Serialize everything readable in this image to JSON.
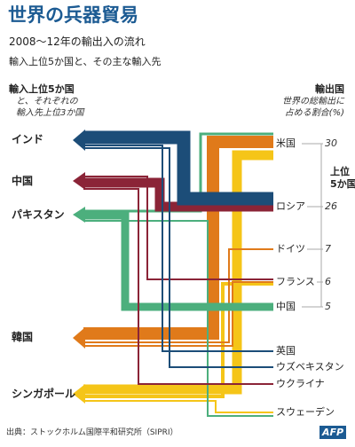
{
  "header": {
    "title": "世界の兵器貿易",
    "subtitle": "2008～12年の輸出入の流れ",
    "description": "輸入上位5か国と、その主な輸入先"
  },
  "importers_header": {
    "title": "輸入上位5か国",
    "line1": "と、それぞれの",
    "line2": "輸入先上位3か国"
  },
  "exporters_header": {
    "title": "輸出国",
    "line1": "世界の総輸出に",
    "line2": "占める割合(%)"
  },
  "importers": [
    "インド",
    "中国",
    "パキスタン",
    "韓国",
    "シンガポール"
  ],
  "exporters": [
    {
      "name": "米国",
      "share": "30"
    },
    {
      "name": "ロシア",
      "share": "26"
    },
    {
      "name": "ドイツ",
      "share": "7"
    },
    {
      "name": "フランス",
      "share": "6"
    },
    {
      "name": "中国",
      "share": "5"
    },
    {
      "name": "英国",
      "share": ""
    },
    {
      "name": "ウズベキスタン",
      "share": ""
    },
    {
      "name": "ウクライナ",
      "share": ""
    },
    {
      "name": "スウェーデン",
      "share": ""
    }
  ],
  "top5_label": "上位\n5か国",
  "source": "出典：ストックホルム国際平和研究所（SIPRI）",
  "logo": "AFP",
  "colors": {
    "title": "#1c5b93",
    "india": "#1c4d78",
    "china": "#8b2437",
    "pakistan": "#4caf7d",
    "korea": "#e07a1a",
    "singapore": "#f5c518"
  },
  "flows": [
    {
      "importer": "インド",
      "exporter": "ロシア",
      "weight": "large"
    },
    {
      "importer": "インド",
      "exporter": "英国",
      "weight": "small"
    },
    {
      "importer": "インド",
      "exporter": "ウズベキスタン",
      "weight": "small"
    },
    {
      "importer": "中国",
      "exporter": "ロシア",
      "weight": "large"
    },
    {
      "importer": "中国",
      "exporter": "フランス",
      "weight": "small"
    },
    {
      "importer": "中国",
      "exporter": "ウクライナ",
      "weight": "small"
    },
    {
      "importer": "パキスタン",
      "exporter": "中国",
      "weight": "large"
    },
    {
      "importer": "パキスタン",
      "exporter": "米国",
      "weight": "medium"
    },
    {
      "importer": "パキスタン",
      "exporter": "スウェーデン",
      "weight": "small"
    },
    {
      "importer": "韓国",
      "exporter": "米国",
      "weight": "large"
    },
    {
      "importer": "韓国",
      "exporter": "ドイツ",
      "weight": "small"
    },
    {
      "importer": "韓国",
      "exporter": "フランス",
      "weight": "small"
    },
    {
      "importer": "シンガポール",
      "exporter": "米国",
      "weight": "large"
    },
    {
      "importer": "シンガポール",
      "exporter": "フランス",
      "weight": "medium"
    },
    {
      "importer": "シンガポール",
      "exporter": "スウェーデン",
      "weight": "small"
    }
  ]
}
